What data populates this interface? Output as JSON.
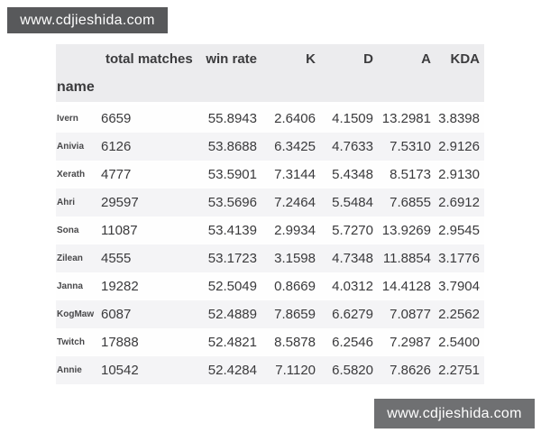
{
  "watermark": {
    "top_text": "www.cdjieshida.com",
    "bottom_text": "www.cdjieshida.com"
  },
  "colors": {
    "watermark_top_bg": "#58595b",
    "watermark_bottom_bg": "#6f7072",
    "header_bg": "#ececee",
    "stripe_bg": "#f4f4f6",
    "text": "#3a3a3c"
  },
  "chart_data": {
    "type": "table",
    "index_name": "name",
    "columns": [
      "total matches",
      "win rate",
      "K",
      "D",
      "A",
      "KDA"
    ],
    "rows": [
      [
        "Ivern",
        "6659",
        "55.8943",
        "2.6406",
        "4.1509",
        "13.2981",
        "3.8398"
      ],
      [
        "Anivia",
        "6126",
        "53.8688",
        "6.3425",
        "4.7633",
        "7.5310",
        "2.9126"
      ],
      [
        "Xerath",
        "4777",
        "53.5901",
        "7.3144",
        "5.4348",
        "8.5173",
        "2.9130"
      ],
      [
        "Ahri",
        "29597",
        "53.5696",
        "7.2464",
        "5.5484",
        "7.6855",
        "2.6912"
      ],
      [
        "Sona",
        "11087",
        "53.4139",
        "2.9934",
        "5.7270",
        "13.9269",
        "2.9545"
      ],
      [
        "Zilean",
        "4555",
        "53.1723",
        "3.1598",
        "4.7348",
        "11.8854",
        "3.1776"
      ],
      [
        "Janna",
        "19282",
        "52.5049",
        "0.8669",
        "4.0312",
        "14.4128",
        "3.7904"
      ],
      [
        "KogMaw",
        "6087",
        "52.4889",
        "7.8659",
        "6.6279",
        "7.0877",
        "2.2562"
      ],
      [
        "Twitch",
        "17888",
        "52.4821",
        "8.5878",
        "6.2546",
        "7.2987",
        "2.5400"
      ],
      [
        "Annie",
        "10542",
        "52.4284",
        "7.1120",
        "6.5820",
        "7.8626",
        "2.2751"
      ]
    ]
  }
}
